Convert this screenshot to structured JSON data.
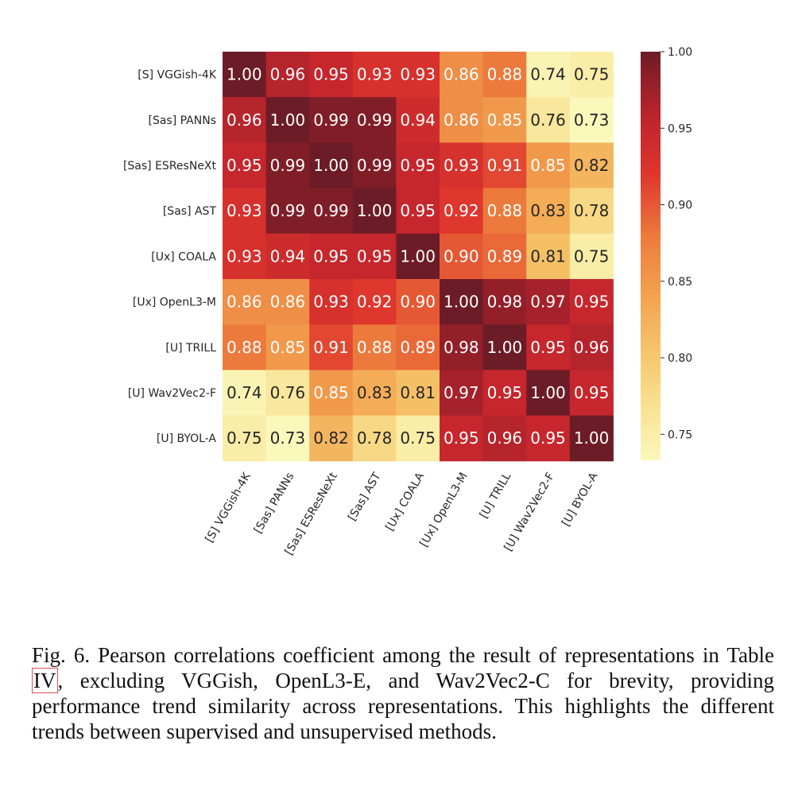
{
  "chart_data": {
    "type": "heatmap",
    "rows": [
      "[S] VGGish-4K",
      "[Sas] PANNs",
      "[Sas] ESResNeXt",
      "[Sas] AST",
      "[Ux] COALA",
      "[Ux] OpenL3-M",
      "[U] TRILL",
      "[U] Wav2Vec2-F",
      "[U] BYOL-A"
    ],
    "columns": [
      "[S] VGGish-4K",
      "[Sas] PANNs",
      "[Sas] ESResNeXt",
      "[Sas] AST",
      "[Ux] COALA",
      "[Ux] OpenL3-M",
      "[U] TRILL",
      "[U] Wav2Vec2-F",
      "[U] BYOL-A"
    ],
    "values": [
      [
        1.0,
        0.96,
        0.95,
        0.93,
        0.93,
        0.86,
        0.88,
        0.74,
        0.75
      ],
      [
        0.96,
        1.0,
        0.99,
        0.99,
        0.94,
        0.86,
        0.85,
        0.76,
        0.73
      ],
      [
        0.95,
        0.99,
        1.0,
        0.99,
        0.95,
        0.93,
        0.91,
        0.85,
        0.82
      ],
      [
        0.93,
        0.99,
        0.99,
        1.0,
        0.95,
        0.92,
        0.88,
        0.83,
        0.78
      ],
      [
        0.93,
        0.94,
        0.95,
        0.95,
        1.0,
        0.9,
        0.89,
        0.81,
        0.75
      ],
      [
        0.86,
        0.86,
        0.93,
        0.92,
        0.9,
        1.0,
        0.98,
        0.97,
        0.95
      ],
      [
        0.88,
        0.85,
        0.91,
        0.88,
        0.89,
        0.98,
        1.0,
        0.95,
        0.96
      ],
      [
        0.74,
        0.76,
        0.85,
        0.83,
        0.81,
        0.97,
        0.95,
        1.0,
        0.95
      ],
      [
        0.75,
        0.73,
        0.82,
        0.78,
        0.75,
        0.95,
        0.96,
        0.95,
        1.0
      ]
    ],
    "colorbar": {
      "ticks": [
        "1.00",
        "0.95",
        "0.90",
        "0.85",
        "0.80",
        "0.75"
      ],
      "range": [
        0.733,
        1.0
      ],
      "colormap": "YlOrRd"
    }
  },
  "caption": {
    "before_ref": "Fig. 6.  Pearson correlations coefficient among the result of representations in Table ",
    "ref": "IV",
    "after_ref": ", excluding VGGish, OpenL3-E, and Wav2Vec2-C for brevity, providing performance trend similarity across representations. This highlights the different trends between supervised and unsupervised methods."
  }
}
